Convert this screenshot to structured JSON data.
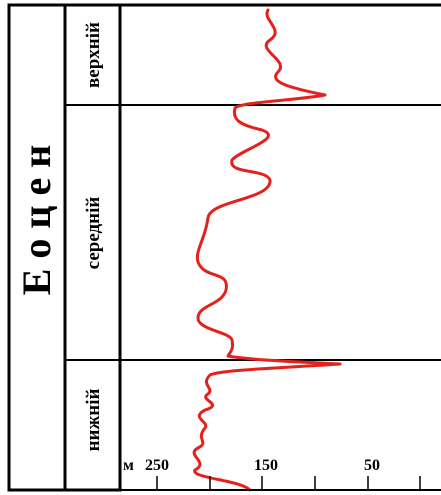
{
  "chart_data": {
    "type": "line",
    "epoch": "Е о ц е н",
    "stages": [
      {
        "label": "верхній"
      },
      {
        "label": "середній"
      },
      {
        "label": "нижній"
      }
    ],
    "axis": {
      "unit": "м",
      "ticks": [
        250,
        150,
        50
      ]
    },
    "curve": {
      "color": "#e5211c"
    }
  }
}
